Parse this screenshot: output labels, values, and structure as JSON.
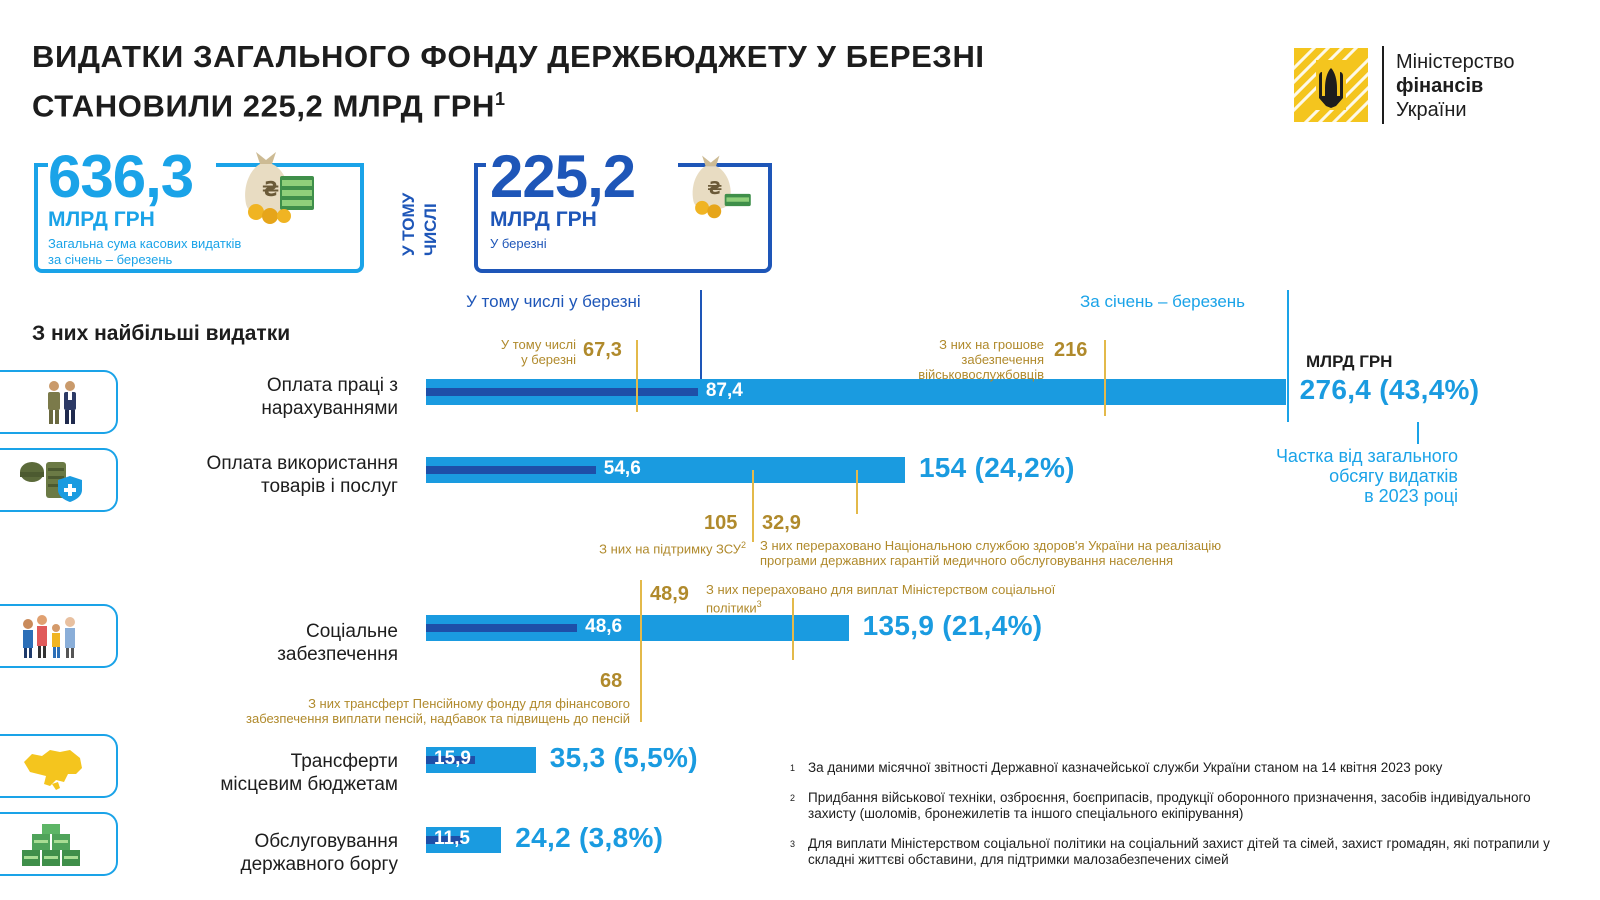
{
  "title": {
    "line1": "ВИДАТКИ ЗАГАЛЬНОГО ФОНДУ ДЕРЖБЮДЖЕТУ У БЕРЕЗНІ",
    "line2": "СТАНОВИЛИ 225,2 МЛРД ГРН",
    "footnote_mark": "1"
  },
  "logo": {
    "line1": "Міністерство",
    "line2": "фінансів",
    "line3": "України",
    "color": "#f4c51e"
  },
  "summary": {
    "total_value": "636,3",
    "total_unit": "МЛРД ГРН",
    "total_desc_line1": "Загальна сума касових видатків",
    "total_desc_line2": "за січень – березень",
    "vertical_label_line1": "У ТОМУ",
    "vertical_label_line2": "ЧИСЛІ",
    "march_value": "225,2",
    "march_unit": "МЛРД ГРН",
    "march_desc": "У березні"
  },
  "legend": {
    "march": "У тому числі у березні",
    "year": "За січень – березень",
    "unit": "МЛРД ГРН",
    "share_line1": "Частка від загального",
    "share_line2": "обсягу видатків",
    "share_line3": "в 2023 році"
  },
  "section_label": "З них найбільші видатки",
  "chart_data": {
    "type": "bar",
    "orientation": "horizontal",
    "unit": "МЛРД ГРН",
    "categories": [
      "Оплата праці з нарахуваннями",
      "Оплата використання товарів і послуг",
      "Соціальне забезпечення",
      "Трансферти місцевим бюджетам",
      "Обслуговування державного боргу"
    ],
    "series": [
      {
        "name": "За січень – березень",
        "values": [
          276.4,
          154,
          135.9,
          35.3,
          24.2
        ],
        "color": "#1a9be0"
      },
      {
        "name": "У тому числі у березні",
        "values": [
          87.4,
          54.6,
          48.6,
          15.9,
          11.5
        ],
        "color": "#1e4fa8"
      }
    ],
    "shares": [
      "43,4%",
      "24,2%",
      "21,4%",
      "5,5%",
      "3,8%"
    ],
    "rows": [
      {
        "label_line1": "Оплата праці з",
        "label_line2": "нарахуваннями",
        "total": 276.4,
        "march": 87.4,
        "total_text": "276,4  (43,4%)",
        "march_text": "87,4",
        "icon": "soldiers-icon"
      },
      {
        "label_line1": "Оплата використання",
        "label_line2": "товарів і послуг",
        "total": 154,
        "march": 54.6,
        "total_text": "154 (24,2%)",
        "march_text": "54,6",
        "icon": "military-gear-icon"
      },
      {
        "label_line1": "Соціальне",
        "label_line2": "забезпечення",
        "total": 135.9,
        "march": 48.6,
        "total_text": "135,9 (21,4%)",
        "march_text": "48,6",
        "icon": "family-icon"
      },
      {
        "label_line1": "Трансферти",
        "label_line2": "місцевим бюджетам",
        "total": 35.3,
        "march": 15.9,
        "total_text": "35,3 (5,5%)",
        "march_text": "15,9",
        "icon": "ukraine-map-icon"
      },
      {
        "label_line1": "Обслуговування",
        "label_line2": "державного боргу",
        "total": 24.2,
        "march": 11.5,
        "total_text": "24,2 (3,8%)",
        "march_text": "11,5",
        "icon": "money-stacks-icon"
      }
    ],
    "annotations": [
      {
        "row": 0,
        "value": 67.3,
        "text": "67,3",
        "label_line1": "У тому числі",
        "label_line2": "у березні"
      },
      {
        "row": 0,
        "value": 216,
        "text": "216",
        "label_line1": "З них на грошове",
        "label_line2": "забезпечення",
        "label_line3": "військовослужбовців"
      },
      {
        "row": 1,
        "value": 105,
        "text": "105",
        "label_line1": "З них на підтримку ЗСУ",
        "sup": "2"
      },
      {
        "row": 1,
        "value": 32.9,
        "text": "32,9",
        "label_line1": "З них перераховано Національною службою здоров'я України на реалізацію",
        "label_line2": "програми державних гарантій медичного обслуговування населення"
      },
      {
        "row": 2,
        "value": 48.9,
        "text": "48,9",
        "label_line1": "З них перераховано для виплат Міністерством соціальної",
        "label_line2": "політики",
        "sup": "3"
      },
      {
        "row": 2,
        "value": 68,
        "text": "68",
        "label_line1": "З них трансферт Пенсійному фонду для фінансового",
        "label_line2": "забезпечення виплати пенсій, надбавок та підвищень до пенсій"
      }
    ]
  },
  "footnotes": [
    {
      "n": "1",
      "text": "За даними місячної звітності Державної казначейської служби України станом на 14 квітня 2023 року"
    },
    {
      "n": "2",
      "text": "Придбання військової техніки, озброєння, боєприпасів, продукції оборонного призначення, засобів індивідуального захисту (шоломів, бронежилетів та іншого спеціального екіпірування)"
    },
    {
      "n": "3",
      "text": "Для виплати Міністерством соціальної політики на соціальний захист дітей та сімей, захист громадян, які потрапили у складні життєві обставини, для підтримки малозабезпечених сімей"
    }
  ],
  "colors": {
    "accent_light": "#1a9be0",
    "accent_dark": "#1e4fa8",
    "gold": "#b08a2c"
  }
}
